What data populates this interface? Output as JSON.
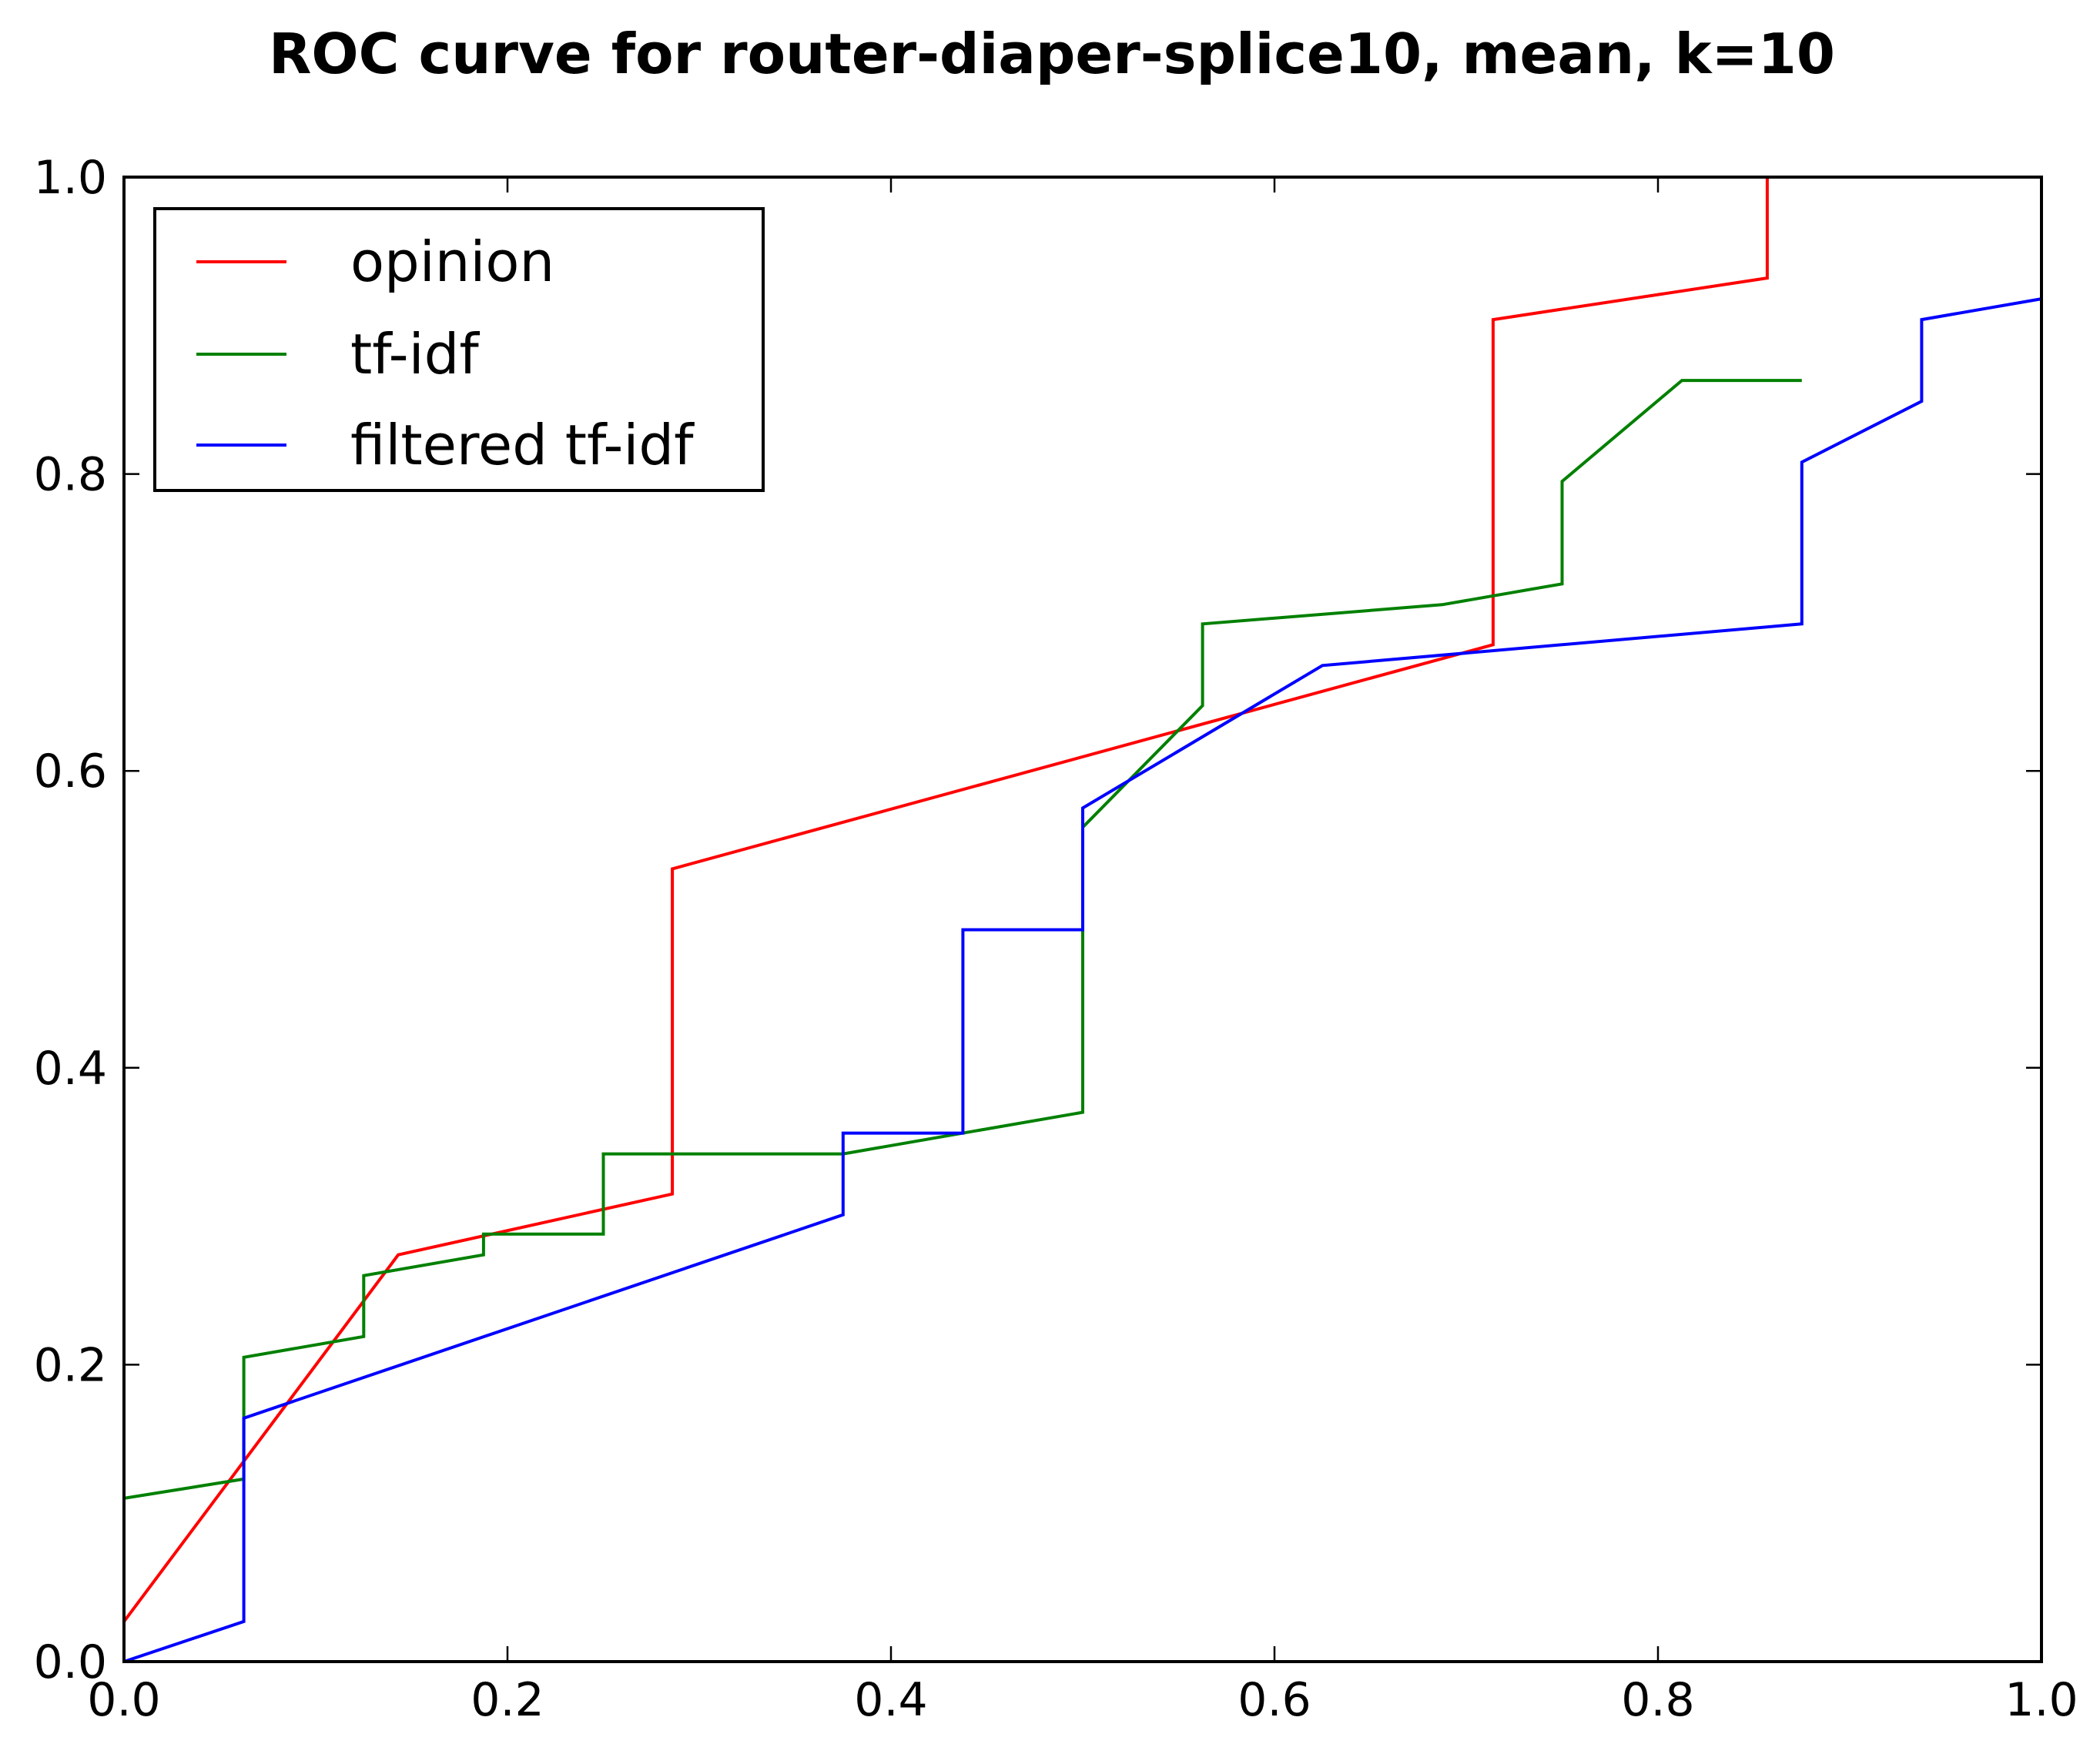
{
  "chart_data": {
    "type": "line",
    "title": "ROC curve for router-diaper-splice10, mean, k=10",
    "xlabel": "",
    "ylabel": "",
    "xlim": [
      0.0,
      1.0
    ],
    "ylim": [
      0.0,
      1.0
    ],
    "xticks": [
      "0.0",
      "0.2",
      "0.4",
      "0.6",
      "0.8",
      "1.0"
    ],
    "yticks": [
      "0.0",
      "0.2",
      "0.4",
      "0.6",
      "0.8",
      "1.0"
    ],
    "grid": false,
    "legend_position": "top-left",
    "series": [
      {
        "name": "opinion",
        "color": "#ff0000",
        "points": [
          [
            0.0,
            0.027
          ],
          [
            0.143,
            0.274
          ],
          [
            0.286,
            0.315
          ],
          [
            0.286,
            0.534
          ],
          [
            0.714,
            0.685
          ],
          [
            0.714,
            0.904
          ],
          [
            0.857,
            0.932
          ],
          [
            0.857,
            1.0
          ],
          [
            1.0,
            1.0
          ]
        ]
      },
      {
        "name": "tf-idf",
        "color": "#008000",
        "points": [
          [
            0.0,
            0.11
          ],
          [
            0.0625,
            0.123
          ],
          [
            0.0625,
            0.205
          ],
          [
            0.125,
            0.219
          ],
          [
            0.125,
            0.26
          ],
          [
            0.1875,
            0.274
          ],
          [
            0.1875,
            0.288
          ],
          [
            0.25,
            0.288
          ],
          [
            0.25,
            0.342
          ],
          [
            0.375,
            0.342
          ],
          [
            0.5,
            0.37
          ],
          [
            0.5,
            0.562
          ],
          [
            0.5625,
            0.644
          ],
          [
            0.5625,
            0.699
          ],
          [
            0.6875,
            0.712
          ],
          [
            0.75,
            0.726
          ],
          [
            0.75,
            0.795
          ],
          [
            0.8125,
            0.863
          ],
          [
            0.875,
            0.863
          ]
        ]
      },
      {
        "name": "filtered tf-idf",
        "color": "#0000ff",
        "points": [
          [
            0.0,
            0.0
          ],
          [
            0.0625,
            0.027
          ],
          [
            0.0625,
            0.164
          ],
          [
            0.375,
            0.301
          ],
          [
            0.375,
            0.356
          ],
          [
            0.4375,
            0.356
          ],
          [
            0.4375,
            0.493
          ],
          [
            0.5,
            0.493
          ],
          [
            0.5,
            0.575
          ],
          [
            0.625,
            0.671
          ],
          [
            0.875,
            0.699
          ],
          [
            0.875,
            0.808
          ],
          [
            0.9375,
            0.849
          ],
          [
            0.9375,
            0.904
          ],
          [
            1.0,
            0.918
          ]
        ]
      }
    ]
  }
}
